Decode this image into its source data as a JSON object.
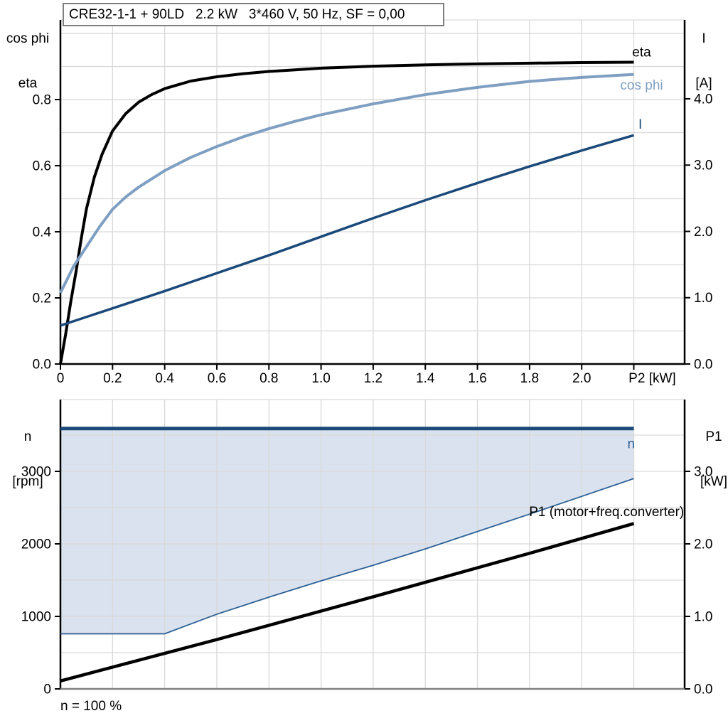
{
  "title_box": {
    "text": "CRE32-1-1 + 90LD   2.2 kW   3*460 V, 50 Hz, SF = 0,00"
  },
  "footer": {
    "text": "n = 100 %"
  },
  "colors": {
    "black": "#000000",
    "light_blue": "#7f9fc2",
    "dark_blue": "#1b4a7a",
    "mid_blue": "#2b5f94",
    "fill_blue": "#d9e2ee",
    "grid": "#d9d9d9",
    "axis_gray": "#808080",
    "title_border": "#7f7f7f"
  },
  "chart_data": [
    {
      "id": "top",
      "type": "line",
      "x_axis": {
        "title": "P2 [kW]",
        "title_anchor_x": 2.18,
        "min": 0,
        "max": 2.395,
        "tick_values": [
          0,
          0.2,
          0.4,
          0.6,
          0.8,
          1.0,
          1.2,
          1.4,
          1.6,
          1.8,
          2.0,
          2.2
        ],
        "tick_labels": [
          "0",
          "0.2",
          "0.4",
          "0.6",
          "0.8",
          "1.0",
          "1.2",
          "1.4",
          "1.6",
          "1.8",
          "2.0",
          ""
        ],
        "grid_step": 0.2,
        "axis_color_key": "black"
      },
      "y_left": {
        "title_lines": [
          "cos phi",
          "eta"
        ],
        "min": 0,
        "max": 1.041,
        "tick_values": [
          0,
          0.2,
          0.4,
          0.6,
          0.8
        ],
        "tick_labels": [
          "0.0",
          "0.2",
          "0.4",
          "0.6",
          "0.8"
        ],
        "grid_step": 0.1
      },
      "y_right": {
        "title_lines": [
          "I",
          "[A]"
        ],
        "min": 0,
        "max": 5.19,
        "tick_values": [
          0,
          1,
          2,
          3,
          4
        ],
        "tick_labels": [
          "0.0",
          "1.0",
          "2.0",
          "3.0",
          "4.0"
        ]
      },
      "series": [
        {
          "name": "eta",
          "axis": "left",
          "color_key": "black",
          "width": 4,
          "points": [
            [
              0,
              0
            ],
            [
              0.02,
              0.09
            ],
            [
              0.04,
              0.19
            ],
            [
              0.06,
              0.28
            ],
            [
              0.08,
              0.38
            ],
            [
              0.1,
              0.47
            ],
            [
              0.13,
              0.565
            ],
            [
              0.16,
              0.635
            ],
            [
              0.2,
              0.705
            ],
            [
              0.25,
              0.757
            ],
            [
              0.3,
              0.792
            ],
            [
              0.35,
              0.815
            ],
            [
              0.4,
              0.833
            ],
            [
              0.5,
              0.856
            ],
            [
              0.6,
              0.869
            ],
            [
              0.7,
              0.878
            ],
            [
              0.8,
              0.885
            ],
            [
              0.9,
              0.89
            ],
            [
              1.0,
              0.895
            ],
            [
              1.2,
              0.901
            ],
            [
              1.4,
              0.905
            ],
            [
              1.6,
              0.908
            ],
            [
              1.8,
              0.91
            ],
            [
              2.0,
              0.912
            ],
            [
              2.2,
              0.913
            ]
          ],
          "label": {
            "text": "eta",
            "x": 2.23,
            "y": 0.93,
            "anchor": "middle"
          }
        },
        {
          "name": "cos phi",
          "axis": "left",
          "color_key": "light_blue",
          "width": 4,
          "points": [
            [
              0,
              0.215
            ],
            [
              0.05,
              0.295
            ],
            [
              0.1,
              0.355
            ],
            [
              0.15,
              0.415
            ],
            [
              0.2,
              0.468
            ],
            [
              0.25,
              0.505
            ],
            [
              0.3,
              0.535
            ],
            [
              0.4,
              0.585
            ],
            [
              0.5,
              0.625
            ],
            [
              0.6,
              0.658
            ],
            [
              0.7,
              0.687
            ],
            [
              0.8,
              0.712
            ],
            [
              0.9,
              0.734
            ],
            [
              1.0,
              0.754
            ],
            [
              1.2,
              0.787
            ],
            [
              1.4,
              0.815
            ],
            [
              1.6,
              0.837
            ],
            [
              1.8,
              0.855
            ],
            [
              2.0,
              0.867
            ],
            [
              2.2,
              0.876
            ]
          ],
          "label": {
            "text": "cos phi",
            "x": 2.23,
            "y": 0.83,
            "anchor": "middle"
          }
        },
        {
          "name": "I",
          "axis": "right",
          "color_key": "dark_blue",
          "width": 3.5,
          "points": [
            [
              0,
              0.58
            ],
            [
              0.2,
              0.84
            ],
            [
              0.4,
              1.1
            ],
            [
              0.6,
              1.37
            ],
            [
              0.8,
              1.64
            ],
            [
              1.0,
              1.92
            ],
            [
              1.2,
              2.2
            ],
            [
              1.4,
              2.47
            ],
            [
              1.6,
              2.73
            ],
            [
              1.8,
              2.98
            ],
            [
              2.0,
              3.22
            ],
            [
              2.2,
              3.45
            ]
          ],
          "label": {
            "text": "I",
            "x": 2.225,
            "y": 3.55,
            "anchor": "middle"
          }
        }
      ]
    },
    {
      "id": "bottom",
      "type": "line",
      "x_axis": {
        "title": "",
        "min": 0,
        "max": 2.395,
        "tick_values": [],
        "tick_labels": [],
        "grid_step": 0.2,
        "axis_color_key": "axis_gray"
      },
      "y_left": {
        "title_lines": [
          "n",
          "[rpm]"
        ],
        "min": 0,
        "max": 3990,
        "tick_values": [
          0,
          1000,
          2000,
          3000
        ],
        "tick_labels": [
          "0",
          "1000",
          "2000",
          "3000"
        ],
        "grid_step": 500
      },
      "y_right": {
        "title_lines": [
          "P1",
          "[kW]"
        ],
        "min": 0,
        "max": 3.99,
        "tick_values": [
          0,
          1,
          2,
          3
        ],
        "tick_labels": [
          "0.0",
          "1.0",
          "2.0",
          "3.0"
        ]
      },
      "fill_area": {
        "upper_value": 3590,
        "lower_series": "n min",
        "color_key": "fill_blue"
      },
      "series": [
        {
          "name": "n min",
          "axis": "left",
          "color_key": "mid_blue",
          "width": 1.8,
          "points": [
            [
              0,
              760
            ],
            [
              0.4,
              760
            ],
            [
              0.6,
              1030
            ],
            [
              0.8,
              1265
            ],
            [
              1.0,
              1490
            ],
            [
              1.2,
              1705
            ],
            [
              1.4,
              1930
            ],
            [
              1.6,
              2170
            ],
            [
              1.8,
              2410
            ],
            [
              2.0,
              2655
            ],
            [
              2.2,
              2900
            ]
          ]
        },
        {
          "name": "n",
          "axis": "left",
          "color_key": "dark_blue",
          "width": 5,
          "points": [
            [
              0,
              3590
            ],
            [
              2.2,
              3590
            ]
          ],
          "label": {
            "text": "n",
            "x": 2.19,
            "y": 3320,
            "anchor": "middle",
            "color_key": "mid_blue"
          }
        },
        {
          "name": "P1 (motor+freq.converter)",
          "axis": "right",
          "color_key": "black",
          "width": 4.5,
          "points": [
            [
              0,
              0.11
            ],
            [
              0.6,
              0.68
            ],
            [
              1.2,
              1.27
            ],
            [
              1.8,
              1.87
            ],
            [
              2.2,
              2.28
            ]
          ],
          "label": {
            "text": "P1 (motor+freq.converter)",
            "x": 2.393,
            "y": 2.38,
            "anchor": "end"
          }
        }
      ]
    }
  ]
}
